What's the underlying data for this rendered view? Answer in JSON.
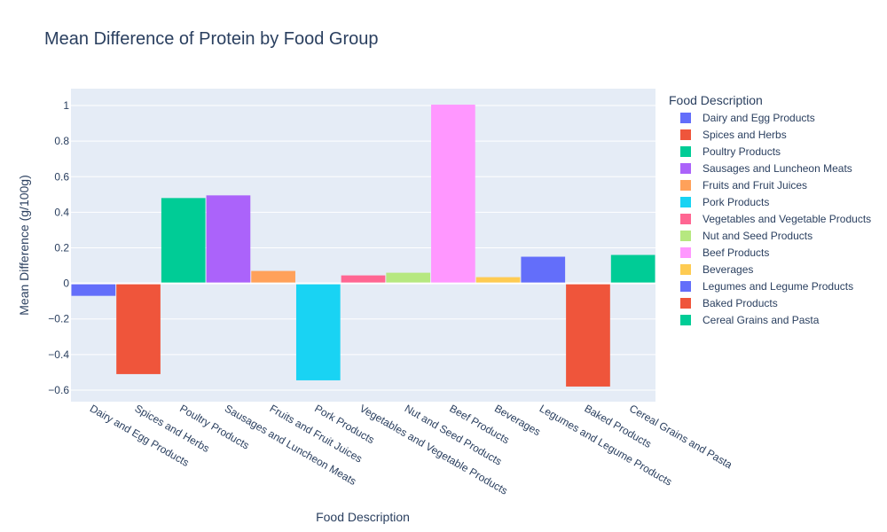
{
  "chart_data": {
    "type": "bar",
    "title": "Mean Difference of Protein by Food Group",
    "xlabel": "Food Description",
    "ylabel": "Mean Difference (g/100g)",
    "legend_title": "Food Description",
    "legend_position": "right",
    "grid": true,
    "ylim": [
      -0.665,
      1.095
    ],
    "yticks": [
      -0.6,
      -0.4,
      -0.2,
      0,
      0.2,
      0.4,
      0.6,
      0.8,
      1
    ],
    "ytick_labels": [
      "−0.6",
      "−0.4",
      "−0.2",
      "0",
      "0.2",
      "0.4",
      "0.6",
      "0.8",
      "1"
    ],
    "categories": [
      "Dairy and Egg Products",
      "Spices and Herbs",
      "Poultry Products",
      "Sausages and Luncheon Meats",
      "Fruits and Fruit Juices",
      "Pork Products",
      "Vegetables and Vegetable Products",
      "Nut and Seed Products",
      "Beef Products",
      "Beverages",
      "Legumes and Legume Products",
      "Baked Products",
      "Cereal Grains and Pasta"
    ],
    "values": [
      -0.07,
      -0.51,
      0.48,
      0.495,
      0.07,
      -0.545,
      0.045,
      0.06,
      1.005,
      0.035,
      0.15,
      -0.58,
      0.16
    ],
    "colors": [
      "#636efa",
      "#EF553B",
      "#00cc96",
      "#ab63fa",
      "#FFA15A",
      "#19d3f3",
      "#FF6692",
      "#B6E880",
      "#FF97FF",
      "#FECB52",
      "#636efa",
      "#EF553B",
      "#00cc96"
    ]
  }
}
